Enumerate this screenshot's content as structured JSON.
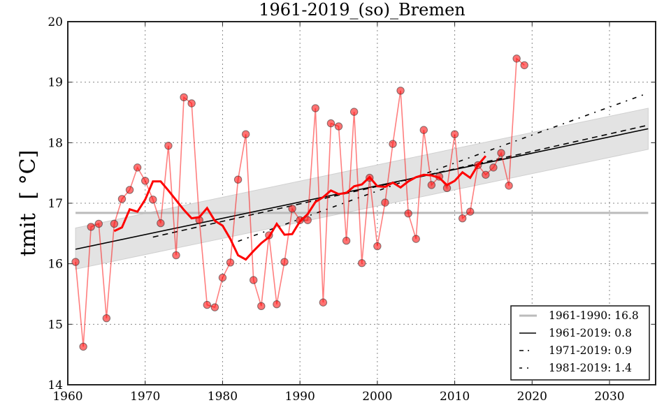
{
  "chart_data": {
    "type": "line",
    "title": "1961-2019_(so)_Bremen",
    "xlabel": "",
    "ylabel": "tmit [ °C]",
    "ylabel_main": "tmit",
    "ylabel_unit": "[ °C]",
    "xlim": [
      1960,
      2036
    ],
    "ylim": [
      14,
      20
    ],
    "xticks": [
      1960,
      1970,
      1980,
      1990,
      2000,
      2010,
      2020,
      2030
    ],
    "yticks": [
      14,
      15,
      16,
      17,
      18,
      19,
      20
    ],
    "grid": true,
    "legend_position": "lower-right",
    "colors": {
      "annual": "#ff0000",
      "running_mean": "#ff0000",
      "reference": "#bbbbbb",
      "trend": "#000000",
      "band": "#e3e3e3"
    },
    "annual_series": {
      "name": "annual",
      "x": [
        1961,
        1962,
        1963,
        1964,
        1965,
        1966,
        1967,
        1968,
        1969,
        1970,
        1971,
        1972,
        1973,
        1974,
        1975,
        1976,
        1977,
        1978,
        1979,
        1980,
        1981,
        1982,
        1983,
        1984,
        1985,
        1986,
        1987,
        1988,
        1989,
        1990,
        1991,
        1992,
        1993,
        1994,
        1995,
        1996,
        1997,
        1998,
        1999,
        2000,
        2001,
        2002,
        2003,
        2004,
        2005,
        2006,
        2007,
        2008,
        2009,
        2010,
        2011,
        2012,
        2013,
        2014,
        2015,
        2016,
        2017,
        2018,
        2019
      ],
      "y": [
        16.03,
        14.63,
        16.61,
        16.66,
        15.1,
        16.66,
        17.07,
        17.22,
        17.59,
        17.37,
        17.06,
        16.67,
        17.95,
        16.14,
        18.75,
        18.65,
        16.72,
        15.32,
        15.28,
        15.77,
        16.02,
        17.39,
        18.14,
        15.73,
        15.3,
        16.47,
        15.33,
        16.03,
        16.91,
        16.72,
        16.72,
        18.57,
        15.36,
        18.32,
        18.27,
        16.38,
        18.51,
        16.01,
        17.42,
        16.29,
        17.01,
        17.98,
        18.86,
        16.83,
        16.41,
        18.21,
        17.3,
        17.44,
        17.25,
        18.14,
        16.75,
        16.86,
        17.63,
        17.47,
        17.59,
        17.83,
        17.29,
        19.39,
        19.28
      ]
    },
    "running_mean": {
      "name": "running mean",
      "x": [
        1966,
        1967,
        1968,
        1969,
        1970,
        1971,
        1972,
        1973,
        1974,
        1975,
        1976,
        1977,
        1978,
        1979,
        1980,
        1981,
        1982,
        1983,
        1984,
        1985,
        1986,
        1987,
        1988,
        1989,
        1990,
        1991,
        1992,
        1993,
        1994,
        1995,
        1996,
        1997,
        1998,
        1999,
        2000,
        2001,
        2002,
        2003,
        2004,
        2005,
        2006,
        2007,
        2008,
        2009,
        2010,
        2011,
        2012,
        2013,
        2014
      ],
      "y": [
        16.54,
        16.6,
        16.9,
        16.86,
        17.06,
        17.36,
        17.36,
        17.21,
        17.05,
        16.89,
        16.75,
        16.77,
        16.92,
        16.71,
        16.63,
        16.41,
        16.14,
        16.07,
        16.21,
        16.34,
        16.44,
        16.66,
        16.48,
        16.49,
        16.7,
        16.82,
        17.02,
        17.1,
        17.21,
        17.15,
        17.17,
        17.28,
        17.31,
        17.43,
        17.28,
        17.27,
        17.34,
        17.26,
        17.36,
        17.43,
        17.47,
        17.46,
        17.42,
        17.3,
        17.37,
        17.51,
        17.42,
        17.63,
        17.78
      ]
    },
    "reference_line": {
      "label": "1961-1990: 16.8",
      "value": 16.84,
      "x": [
        1961,
        2035
      ]
    },
    "trends": [
      {
        "label": "1961-2019: 0.8",
        "style": "solid",
        "x": [
          1961,
          2035
        ],
        "y": [
          16.24,
          18.23
        ]
      },
      {
        "label": "1971-2019: 0.9",
        "style": "dashed",
        "x": [
          1971,
          2035
        ],
        "y": [
          16.44,
          18.29
        ]
      },
      {
        "label": "1981-2019: 1.4",
        "style": "dashdot",
        "x": [
          1982,
          2035
        ],
        "y": [
          16.37,
          18.82
        ]
      }
    ],
    "confidence_band": {
      "x": [
        1961,
        2035
      ],
      "upper": [
        16.59,
        18.57
      ],
      "lower": [
        15.91,
        17.89
      ]
    },
    "legend": [
      {
        "label": "1961-1990: 16.8",
        "style": "reference"
      },
      {
        "label": "1961-2019: 0.8",
        "style": "solid"
      },
      {
        "label": "1971-2019: 0.9",
        "style": "dashed"
      },
      {
        "label": "1981-2019: 1.4",
        "style": "dashdot"
      }
    ]
  }
}
